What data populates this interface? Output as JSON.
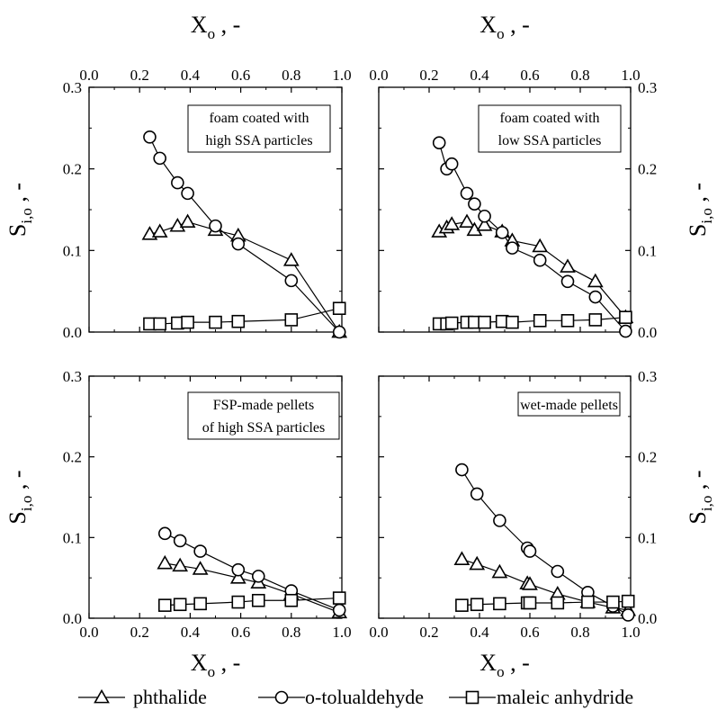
{
  "chart_data": [
    {
      "type": "line",
      "panel": "top-left",
      "annotation": [
        "foam coated with",
        "high SSA particles"
      ],
      "xlabel": "X",
      "xlabel_sub": "o",
      "xlabel_suffix": " , -",
      "ylabel": "S",
      "ylabel_sub": "i,o",
      "ylabel_suffix": " , -",
      "xlim": [
        0,
        1.0
      ],
      "ylim": [
        0,
        0.3
      ],
      "x_ticks": [
        "0.0",
        "0.2",
        "0.4",
        "0.6",
        "0.8",
        "1.0"
      ],
      "y_ticks": [
        "0.0",
        "0.1",
        "0.2",
        "0.3"
      ],
      "series": [
        {
          "name": "phthalide",
          "marker": "triangle",
          "x": [
            0.24,
            0.28,
            0.35,
            0.39,
            0.5,
            0.59,
            0.8,
            0.99
          ],
          "y": [
            0.12,
            0.123,
            0.13,
            0.135,
            0.125,
            0.118,
            0.088,
            0.0
          ]
        },
        {
          "name": "o-tolualdehyde",
          "marker": "circle",
          "x": [
            0.24,
            0.28,
            0.35,
            0.39,
            0.5,
            0.59,
            0.8,
            0.99
          ],
          "y": [
            0.239,
            0.213,
            0.183,
            0.17,
            0.13,
            0.108,
            0.063,
            0.0
          ]
        },
        {
          "name": "maleic anhydride",
          "marker": "square",
          "x": [
            0.24,
            0.28,
            0.35,
            0.39,
            0.5,
            0.59,
            0.8,
            0.99
          ],
          "y": [
            0.01,
            0.01,
            0.011,
            0.012,
            0.012,
            0.013,
            0.015,
            0.029
          ]
        }
      ]
    },
    {
      "type": "line",
      "panel": "top-right",
      "annotation": [
        "foam coated with",
        "low SSA particles"
      ],
      "xlabel": "X",
      "xlabel_sub": "o",
      "xlabel_suffix": " , -",
      "ylabel": "S",
      "ylabel_sub": "i,o",
      "ylabel_suffix": " , -",
      "xlim": [
        0,
        1.0
      ],
      "ylim": [
        0,
        0.3
      ],
      "x_ticks": [
        "0.0",
        "0.2",
        "0.4",
        "0.6",
        "0.8",
        "1.0"
      ],
      "y_ticks": [
        "0.0",
        "0.1",
        "0.2",
        "0.3"
      ],
      "series": [
        {
          "name": "phthalide",
          "marker": "triangle",
          "x": [
            0.24,
            0.27,
            0.29,
            0.35,
            0.38,
            0.42,
            0.49,
            0.53,
            0.64,
            0.75,
            0.86,
            0.98
          ],
          "y": [
            0.123,
            0.128,
            0.132,
            0.135,
            0.125,
            0.131,
            0.123,
            0.112,
            0.105,
            0.08,
            0.062,
            0.018
          ]
        },
        {
          "name": "o-tolualdehyde",
          "marker": "circle",
          "x": [
            0.24,
            0.27,
            0.29,
            0.35,
            0.38,
            0.42,
            0.49,
            0.53,
            0.64,
            0.75,
            0.86,
            0.98
          ],
          "y": [
            0.232,
            0.2,
            0.206,
            0.17,
            0.157,
            0.142,
            0.122,
            0.103,
            0.088,
            0.062,
            0.043,
            0.001
          ]
        },
        {
          "name": "maleic anhydride",
          "marker": "square",
          "x": [
            0.24,
            0.27,
            0.29,
            0.35,
            0.38,
            0.42,
            0.49,
            0.53,
            0.64,
            0.75,
            0.86,
            0.98
          ],
          "y": [
            0.01,
            0.01,
            0.011,
            0.012,
            0.012,
            0.012,
            0.013,
            0.012,
            0.014,
            0.014,
            0.015,
            0.018
          ]
        }
      ]
    },
    {
      "type": "line",
      "panel": "bottom-left",
      "annotation": [
        "FSP-made pellets",
        "of high SSA particles"
      ],
      "xlabel": "X",
      "xlabel_sub": "o",
      "xlabel_suffix": " , -",
      "ylabel": "S",
      "ylabel_sub": "i,o",
      "ylabel_suffix": " , -",
      "xlim": [
        0,
        1.0
      ],
      "ylim": [
        0,
        0.3
      ],
      "x_ticks": [
        "0.0",
        "0.2",
        "0.4",
        "0.6",
        "0.8",
        "1.0"
      ],
      "y_ticks": [
        "0.0",
        "0.1",
        "0.2",
        "0.3"
      ],
      "series": [
        {
          "name": "phthalide",
          "marker": "triangle",
          "x": [
            0.3,
            0.36,
            0.44,
            0.59,
            0.67,
            0.8,
            0.99
          ],
          "y": [
            0.068,
            0.065,
            0.061,
            0.05,
            0.044,
            0.03,
            0.007
          ]
        },
        {
          "name": "o-tolualdehyde",
          "marker": "circle",
          "x": [
            0.3,
            0.36,
            0.44,
            0.59,
            0.67,
            0.8,
            0.99
          ],
          "y": [
            0.105,
            0.096,
            0.083,
            0.06,
            0.052,
            0.034,
            0.01
          ]
        },
        {
          "name": "maleic anhydride",
          "marker": "square",
          "x": [
            0.3,
            0.36,
            0.44,
            0.59,
            0.67,
            0.8,
            0.99
          ],
          "y": [
            0.016,
            0.017,
            0.018,
            0.02,
            0.022,
            0.022,
            0.025
          ]
        }
      ]
    },
    {
      "type": "line",
      "panel": "bottom-right",
      "annotation": [
        "wet-made pellets"
      ],
      "xlabel": "X",
      "xlabel_sub": "o",
      "xlabel_suffix": " , -",
      "ylabel": "S",
      "ylabel_sub": "i,o",
      "ylabel_suffix": " , -",
      "xlim": [
        0,
        1.0
      ],
      "ylim": [
        0,
        0.3
      ],
      "x_ticks": [
        "0.0",
        "0.2",
        "0.4",
        "0.6",
        "0.8",
        "1.0"
      ],
      "y_ticks": [
        "0.0",
        "0.1",
        "0.2",
        "0.3"
      ],
      "series": [
        {
          "name": "phthalide",
          "marker": "triangle",
          "x": [
            0.33,
            0.39,
            0.48,
            0.59,
            0.6,
            0.71,
            0.83,
            0.93,
            0.99
          ],
          "y": [
            0.073,
            0.067,
            0.057,
            0.043,
            0.042,
            0.03,
            0.02,
            0.013,
            0.01
          ]
        },
        {
          "name": "o-tolualdehyde",
          "marker": "circle",
          "x": [
            0.33,
            0.39,
            0.48,
            0.59,
            0.6,
            0.71,
            0.83,
            0.93,
            0.99
          ],
          "y": [
            0.184,
            0.154,
            0.121,
            0.087,
            0.083,
            0.058,
            0.032,
            0.015,
            0.004
          ]
        },
        {
          "name": "maleic anhydride",
          "marker": "square",
          "x": [
            0.33,
            0.39,
            0.48,
            0.59,
            0.6,
            0.71,
            0.83,
            0.93,
            0.99
          ],
          "y": [
            0.016,
            0.017,
            0.018,
            0.019,
            0.019,
            0.019,
            0.02,
            0.02,
            0.021
          ]
        }
      ]
    }
  ],
  "legend": [
    {
      "name": "phthalide",
      "marker": "triangle"
    },
    {
      "name": "o-tolualdehyde",
      "marker": "circle"
    },
    {
      "name": "maleic anhydride",
      "marker": "square"
    }
  ],
  "colors": {
    "ink": "#000000",
    "background": "#ffffff"
  }
}
